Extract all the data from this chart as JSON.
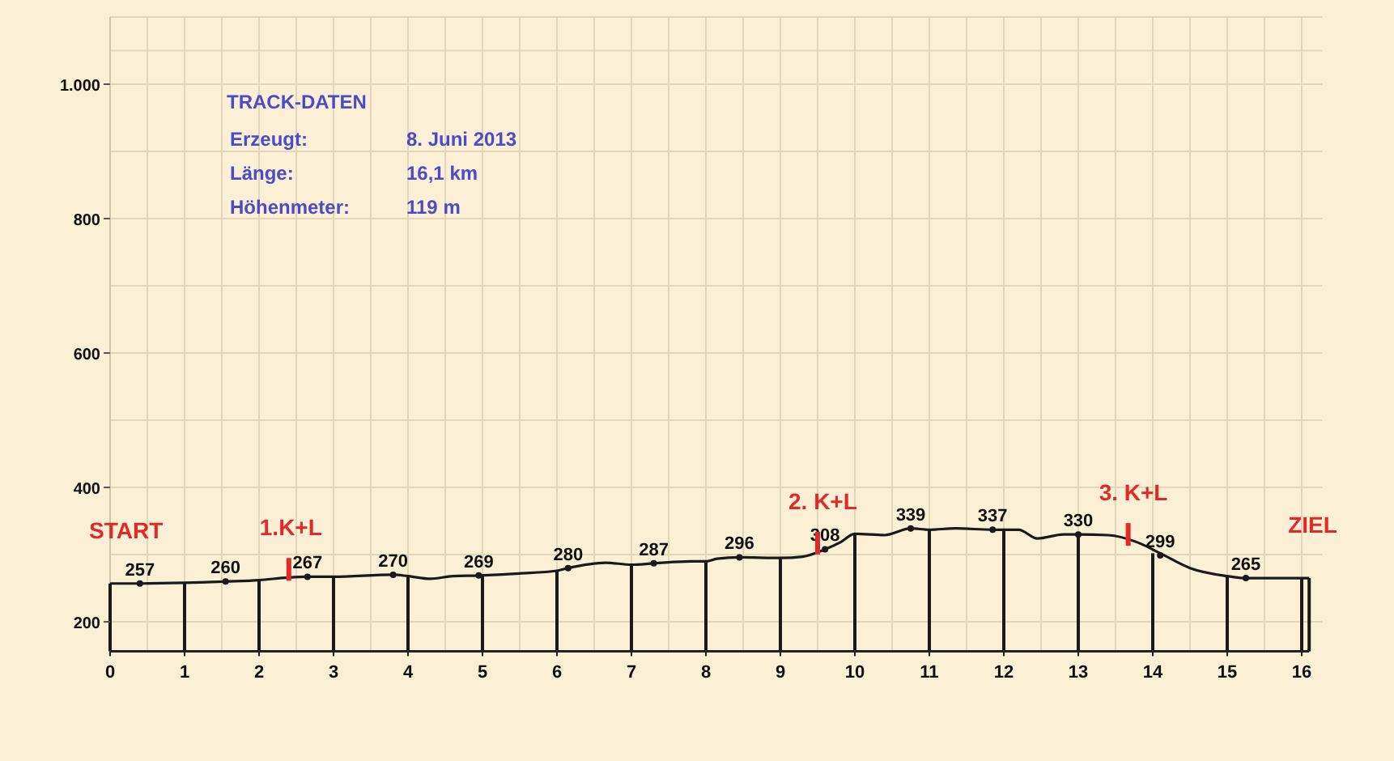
{
  "chart_data": {
    "type": "line",
    "title": "TRACK-DATEN",
    "xlim": [
      0,
      16.1
    ],
    "xticks": [
      0,
      1,
      2,
      3,
      4,
      5,
      6,
      7,
      8,
      9,
      10,
      11,
      12,
      13,
      14,
      15,
      16
    ],
    "ylim": [
      156,
      1100
    ],
    "yticks": [
      200,
      400,
      600,
      800,
      {
        "value": 1000,
        "label": "1.000"
      }
    ],
    "grid": true,
    "line_style": "solid",
    "series": [
      {
        "color": "#1a1a1a",
        "x": [
          0,
          0.4,
          1,
          1.55,
          2,
          2.4,
          2.65,
          3,
          3.8,
          4.0,
          4.3,
          4.6,
          4.95,
          5.5,
          6,
          6.15,
          6.65,
          7,
          7.3,
          7.8,
          8,
          8.15,
          8.45,
          9,
          9.3,
          9.6,
          9.8,
          10,
          10.4,
          10.75,
          11,
          11.35,
          11.85,
          12.2,
          12.45,
          12.8,
          13,
          13.4,
          13.8,
          14.1,
          14.5,
          15,
          15.25,
          16.1
        ],
        "values": [
          257,
          257,
          258,
          260,
          262,
          266,
          267,
          267,
          270,
          268,
          264,
          268,
          269,
          272,
          276,
          280,
          288,
          285,
          287,
          290,
          290,
          294,
          296,
          295,
          297,
          308,
          318,
          331,
          329,
          339,
          337,
          339,
          337,
          337,
          324,
          330,
          330,
          329,
          318,
          302,
          280,
          268,
          265,
          265
        ]
      },
      {
        "type": "bar",
        "color": "#1a1a1a",
        "x": [
          0,
          1,
          2,
          3,
          4,
          5,
          6,
          7,
          8,
          9,
          10,
          11,
          12,
          13,
          14,
          15,
          16,
          16.1
        ],
        "values": [
          257,
          258,
          262,
          267,
          268,
          269,
          276,
          285,
          290,
          295,
          331,
          337,
          337,
          330,
          302,
          268,
          265,
          265
        ]
      },
      {
        "type": "scatter",
        "color": "#1a1a1a",
        "marker": "circle",
        "x": [
          0.4,
          1.55,
          2.65,
          3.8,
          4.95,
          6.15,
          7.3,
          8.45,
          9.6,
          10.75,
          11.85,
          13,
          14.1,
          15.25
        ],
        "values": [
          257,
          260,
          267,
          270,
          269,
          280,
          287,
          296,
          308,
          339,
          337,
          330,
          299,
          265
        ],
        "value_labels": [
          "257",
          "260",
          "267",
          "270",
          "269",
          "280",
          "287",
          "296",
          "308",
          "339",
          "337",
          "330",
          "299",
          "265"
        ]
      }
    ],
    "annotations": [
      "Erzeugt:",
      "8. Juni 2013",
      "Länge:",
      "16,1 km",
      "Höhenmeter:",
      "119 m",
      {
        "text": "START",
        "x": 0,
        "y": 257
      },
      {
        "text": "1.K+L",
        "x": 2.4,
        "y": 266
      },
      {
        "text": "2. K+L",
        "x": 9.5,
        "y": 305
      },
      {
        "text": "3. K+L",
        "x": 13.67,
        "y": 318
      },
      {
        "text": "ZIEL",
        "x": 16.1,
        "y": 265
      }
    ]
  }
}
